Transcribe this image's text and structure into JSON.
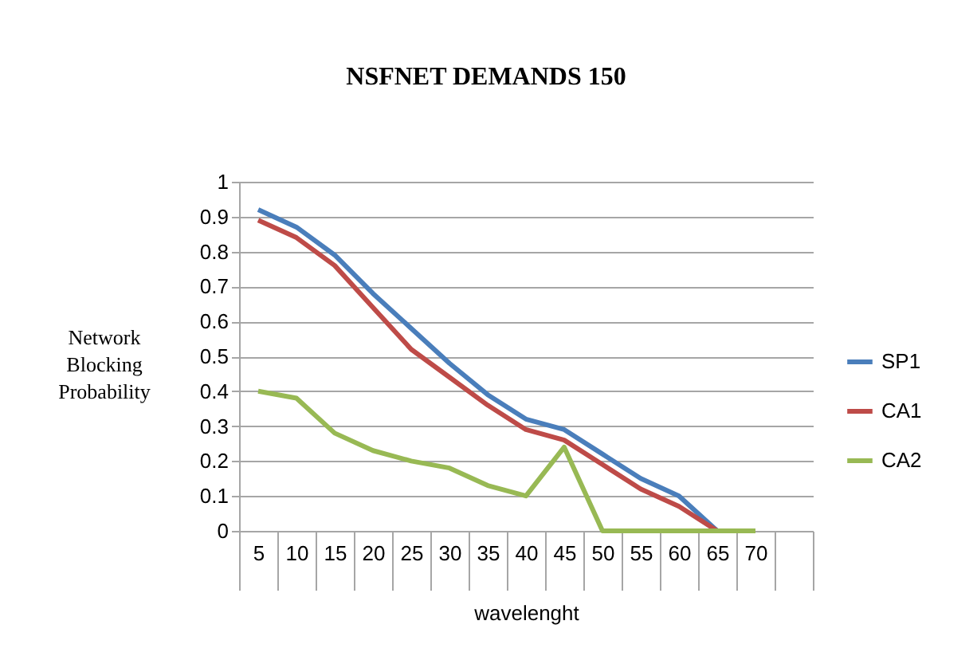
{
  "chart_data": {
    "type": "line",
    "title": "NSFNET DEMANDS 150",
    "xlabel": "wavelenght",
    "ylabel": "Network Blocking Probability",
    "categories": [
      "5",
      "10",
      "15",
      "20",
      "25",
      "30",
      "35",
      "40",
      "45",
      "50",
      "55",
      "60",
      "65",
      "70",
      null
    ],
    "series": [
      {
        "name": "SP1",
        "color": "#4a7ebb",
        "values": [
          0.92,
          0.87,
          0.79,
          0.68,
          0.58,
          0.48,
          0.39,
          0.32,
          0.29,
          0.22,
          0.15,
          0.1,
          0,
          null,
          null
        ]
      },
      {
        "name": "CA1",
        "color": "#be4b48",
        "values": [
          0.89,
          0.84,
          0.76,
          0.64,
          0.52,
          0.44,
          0.36,
          0.29,
          0.26,
          0.19,
          0.12,
          0.07,
          0,
          null,
          null
        ]
      },
      {
        "name": "CA2",
        "color": "#98b954",
        "values": [
          0.4,
          0.38,
          0.28,
          0.23,
          0.2,
          0.18,
          0.13,
          0.1,
          0.24,
          0,
          0,
          0,
          0,
          0,
          null
        ]
      }
    ],
    "ylim": [
      0,
      1
    ],
    "yticks": [
      0,
      0.1,
      0.2,
      0.3,
      0.4,
      0.5,
      0.6,
      0.7,
      0.8,
      0.9,
      1
    ],
    "grid": "y",
    "legend": "right"
  }
}
